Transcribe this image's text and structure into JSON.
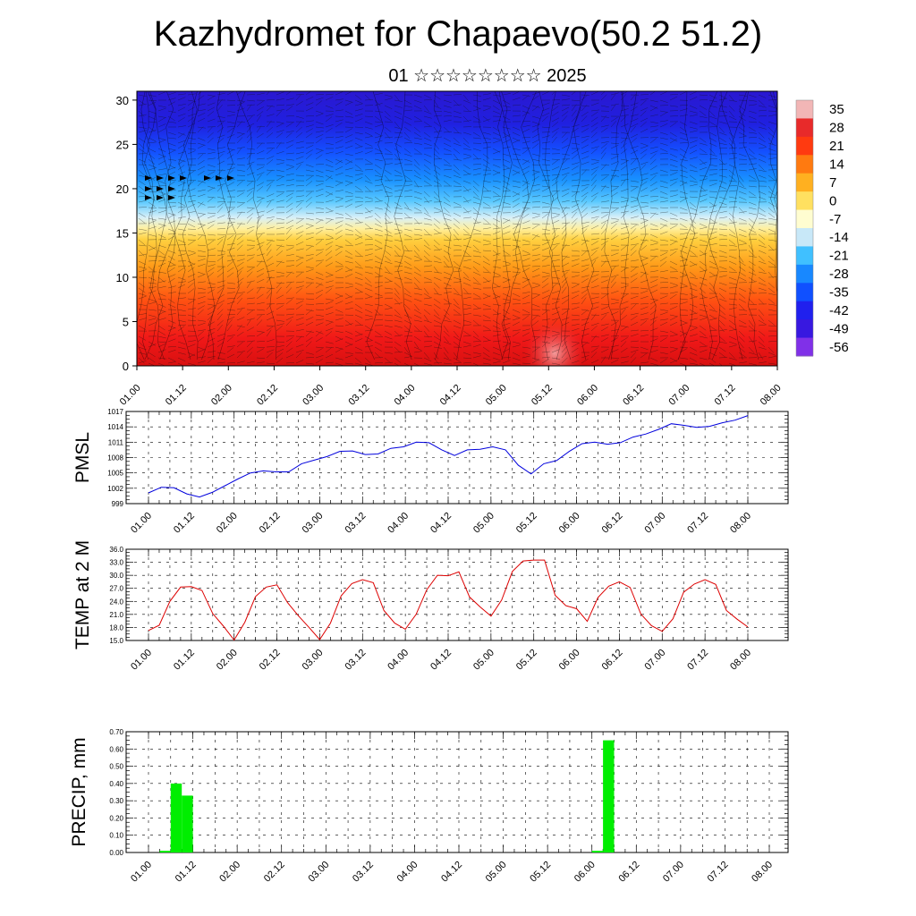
{
  "header": {
    "title": "Kazhydromet for Chapaevo(50.2 51.2)",
    "subtitle": "01 ☆☆☆☆☆☆☆☆ 2025"
  },
  "chart_data": [
    {
      "type": "heatmap",
      "title": "",
      "x_ticks": [
        "01.00",
        "01.12",
        "02.00",
        "02.12",
        "03.00",
        "03.12",
        "04.00",
        "04.12",
        "05.00",
        "05.12",
        "06.00",
        "06.12",
        "07.00",
        "07.12",
        "08.00"
      ],
      "y_ticks": [
        "0",
        "5",
        "10",
        "15",
        "20",
        "25",
        "30"
      ],
      "ylim": [
        0,
        31
      ],
      "colorbar_labels": [
        "35",
        "28",
        "21",
        "14",
        "7",
        "0",
        "-7",
        "-14",
        "-21",
        "-28",
        "-35",
        "-42",
        "-49",
        "-56"
      ],
      "colorbar_colors": [
        "#f2b6b6",
        "#e82a2a",
        "#ff3a10",
        "#ff7a10",
        "#ffb020",
        "#ffe060",
        "#fffdd0",
        "#c8e8f8",
        "#40c0ff",
        "#1888ff",
        "#1050ff",
        "#2020ee",
        "#3818e0",
        "#8030e8"
      ]
    },
    {
      "type": "line",
      "ylabel": "PMSL",
      "x_ticks": [
        "01.00",
        "01.12",
        "02.00",
        "02.12",
        "03.00",
        "03.12",
        "04.00",
        "04.12",
        "05.00",
        "05.12",
        "06.00",
        "06.12",
        "07.00",
        "07.12",
        "08.00"
      ],
      "y_ticks": [
        "999",
        "1002",
        "1005",
        "1008",
        "1011",
        "1014",
        "1017"
      ],
      "ylim": [
        999,
        1017
      ],
      "color": "#0000dd",
      "values": [
        1001.1,
        1002.2,
        1002.1,
        1000.9,
        1000.3,
        1001.2,
        1002.5,
        1003.8,
        1005,
        1005.4,
        1005.2,
        1005.2,
        1006.8,
        1007.5,
        1008.2,
        1009.2,
        1009.3,
        1008.6,
        1008.7,
        1009.8,
        1010.1,
        1011,
        1010.9,
        1009.5,
        1008.4,
        1009.5,
        1009.6,
        1010.1,
        1009.5,
        1006.5,
        1004.8,
        1006.8,
        1007.4,
        1009.2,
        1010.7,
        1011,
        1010.6,
        1010.9,
        1012,
        1012.6,
        1013.5,
        1014.6,
        1014.3,
        1013.9,
        1014.1,
        1014.8,
        1015.3,
        1016.2
      ]
    },
    {
      "type": "line",
      "ylabel": "TEMP at 2 M",
      "x_ticks": [
        "01.00",
        "01.12",
        "02.00",
        "02.12",
        "03.00",
        "03.12",
        "04.00",
        "04.12",
        "05.00",
        "05.12",
        "06.00",
        "06.12",
        "07.00",
        "07.12",
        "08.00"
      ],
      "y_ticks": [
        "15.0",
        "18.0",
        "21.0",
        "24.0",
        "27.0",
        "30.0",
        "33.0",
        "36.0"
      ],
      "ylim": [
        15,
        36
      ],
      "color": "#dd0000",
      "values": [
        17.3,
        18.5,
        24,
        27.3,
        27.4,
        26.5,
        21.2,
        18.3,
        15.1,
        19.2,
        25.1,
        27.3,
        27.8,
        23.7,
        20.7,
        18,
        15.2,
        19,
        25.3,
        28.1,
        29,
        28.3,
        21.9,
        19,
        17.6,
        21,
        26.7,
        30,
        29.9,
        30.8,
        25,
        22.7,
        20.6,
        24.3,
        30.9,
        33.3,
        33.5,
        33.5,
        25.4,
        23,
        22.3,
        19.4,
        24.9,
        27.5,
        28.5,
        27.2,
        21.1,
        18.4,
        17.1,
        20,
        26.1,
        28,
        29,
        27.9,
        21.9,
        19.9,
        18.1
      ]
    },
    {
      "type": "bar",
      "ylabel": "PRECIP, mm",
      "x_ticks": [
        "01.00",
        "01.12",
        "02.00",
        "02.12",
        "03.00",
        "03.12",
        "04.00",
        "04.12",
        "05.00",
        "05.12",
        "06.00",
        "06.12",
        "07.00",
        "07.12",
        "08.00"
      ],
      "y_ticks": [
        "0.00",
        "0.10",
        "0.20",
        "0.30",
        "0.40",
        "0.50",
        "0.60",
        "0.70"
      ],
      "ylim": [
        0,
        0.7
      ],
      "color": "#00ee00",
      "bars": [
        {
          "x": 1.5,
          "value": 0.01
        },
        {
          "x": 2.5,
          "value": 0.4
        },
        {
          "x": 3.5,
          "value": 0.33
        },
        {
          "x": 40.5,
          "value": 0.01
        },
        {
          "x": 41.5,
          "value": 0.65
        }
      ]
    }
  ]
}
